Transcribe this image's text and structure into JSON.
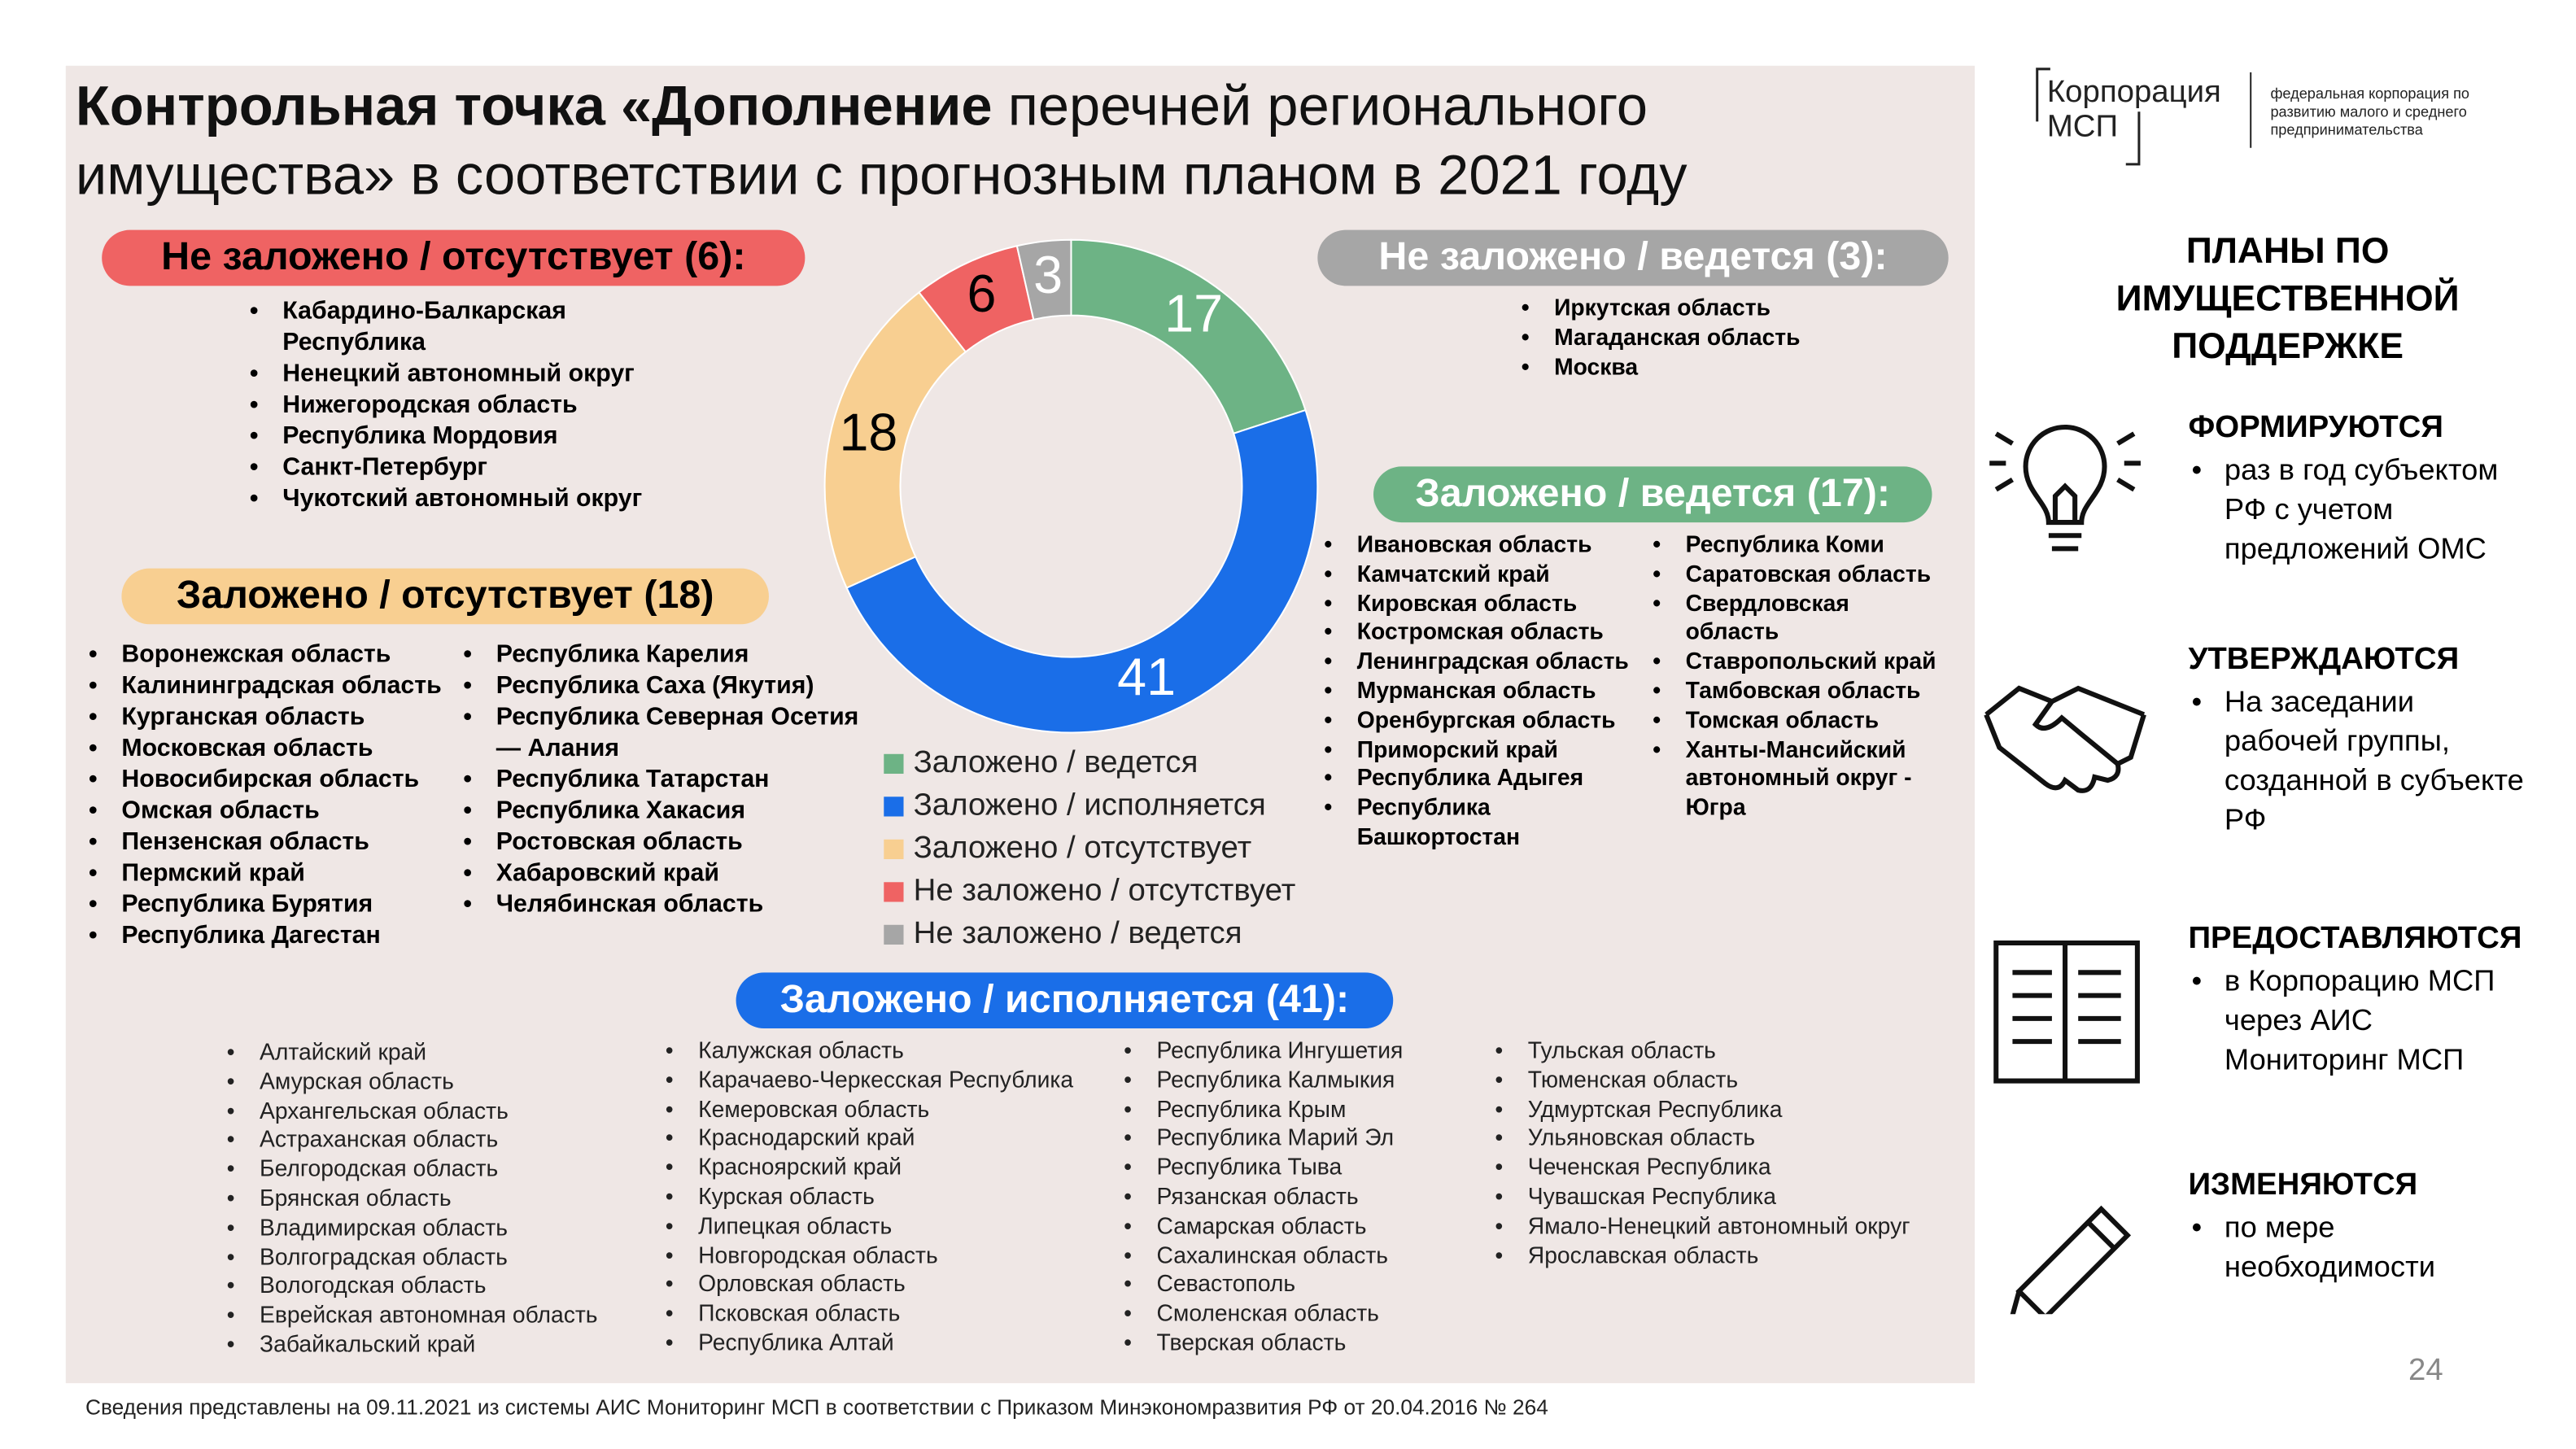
{
  "title": {
    "bold": "Контрольная точка «Дополнение",
    "rest": "перечней регионального имущества» в соответствии с прогнозным планом в 2021 году"
  },
  "logo": {
    "name": "Корпорация МСП",
    "tagline": "федеральная корпорация по развитию малого и среднего предпринимательства"
  },
  "chart_data": {
    "type": "pie",
    "donut": true,
    "categories": [
      "Заложено / ведется",
      "Заложено / исполняется",
      "Заложено / отсутствует",
      "Не заложено / отсутствует",
      "Не заложено / ведется"
    ],
    "values": [
      17,
      41,
      18,
      6,
      3
    ],
    "colors": [
      "#6db385",
      "#1a6ee8",
      "#f8cf91",
      "#ef6363",
      "#a6a6a6"
    ],
    "label_colors": [
      "#ffffff",
      "#ffffff",
      "#000000",
      "#000000",
      "#ffffff"
    ]
  },
  "groups": [
    {
      "title": "Не заложено / отсутствует (6):",
      "color": "#ef6363",
      "text_color": "#000000",
      "columns": [
        [
          "Кабардино-Балкарская Республика",
          "Ненецкий автономный округ",
          "Нижегородская область",
          "Республика Мордовия",
          "Санкт-Петербург",
          "Чукотский автономный округ"
        ]
      ]
    },
    {
      "title": "Не заложено / ведется (3):",
      "color": "#a6a6a6",
      "text_color": "#ffffff",
      "columns": [
        [
          "Иркутская область",
          "Магаданская область",
          "Москва"
        ]
      ]
    },
    {
      "title": "Заложено / ведется (17):",
      "color": "#6db385",
      "text_color": "#ffffff",
      "columns": [
        [
          "Ивановская область",
          "Камчатский край",
          "Кировская область",
          "Костромская область",
          "Ленинградская область",
          "Мурманская область",
          "Оренбургская область",
          "Приморский край",
          "Республика Адыгея",
          "Республика Башкортостан"
        ],
        [
          "Республика Коми",
          "Саратовская область",
          "Свердловская область",
          "Ставропольский край",
          "Тамбовская область",
          "Томская область",
          "Ханты-Мансийский автономный округ - Югра"
        ]
      ]
    },
    {
      "title": "Заложено / отсутствует (18)",
      "color": "#f8cf91",
      "text_color": "#000000",
      "columns": [
        [
          "Воронежская область",
          "Калининградская область",
          "Курганская область",
          "Московская область",
          "Новосибирская область",
          "Омская область",
          "Пензенская область",
          "Пермский край",
          "Республика Бурятия",
          "Республика Дагестан"
        ],
        [
          "Республика Карелия",
          "Республика Саха (Якутия)",
          "Республика Северная Осетия — Алания",
          "Республика Татарстан",
          "Республика Хакасия",
          "Ростовская область",
          "Хабаровский край",
          "Челябинская область"
        ]
      ]
    },
    {
      "title": "Заложено / исполняется (41):",
      "color": "#1a6ee8",
      "text_color": "#ffffff",
      "columns": [
        [
          "Алтайский край",
          "Амурская область",
          "Архангельская область",
          "Астраханская область",
          "Белгородская область",
          "Брянская область",
          "Владимирская область",
          "Волгоградская область",
          "Вологодская область",
          "Еврейская автономная область",
          "Забайкальский край"
        ],
        [
          "Калужская область",
          "Карачаево-Черкесская Республика",
          "Кемеровская область",
          "Краснодарский край",
          "Красноярский край",
          "Курская область",
          "Липецкая область",
          "Новгородская область",
          "Орловская область",
          "Псковская область",
          "Республика Алтай"
        ],
        [
          "Республика Ингушетия",
          "Республика Калмыкия",
          "Республика Крым",
          "Республика Марий Эл",
          "Республика Тыва",
          "Рязанская область",
          "Самарская область",
          "Сахалинская область",
          "Севастополь",
          "Смоленская область",
          "Тверская область"
        ],
        [
          "Тульская область",
          "Тюменская область",
          "Удмуртская Республика",
          "Ульяновская область",
          "Чеченская Республика",
          "Чувашская Республика",
          "Ямало-Ненецкий автономный округ",
          "Ярославская область"
        ]
      ]
    }
  ],
  "sidebar": {
    "title": "ПЛАНЫ ПО ИМУЩЕСТВЕННОЙ ПОДДЕРЖКЕ",
    "items": [
      {
        "heading": "ФОРМИРУЮТСЯ",
        "text": "раз в год субъектом РФ с учетом предложений ОМС"
      },
      {
        "heading": "УТВЕРЖДАЮТСЯ",
        "text": "На заседании рабочей группы, созданной в субъекте РФ"
      },
      {
        "heading": "ПРЕДОСТАВЛЯЮТСЯ",
        "text": "в Корпорацию МСП через АИС Мониторинг МСП"
      },
      {
        "heading": "ИЗМЕНЯЮТСЯ",
        "text": "по мере необходимости"
      }
    ]
  },
  "footer": "Сведения представлены на 09.11.2021 из системы АИС Мониторинг МСП в соответствии с Приказом Минэкономразвития РФ от 20.04.2016 № 264",
  "page_number": "24"
}
